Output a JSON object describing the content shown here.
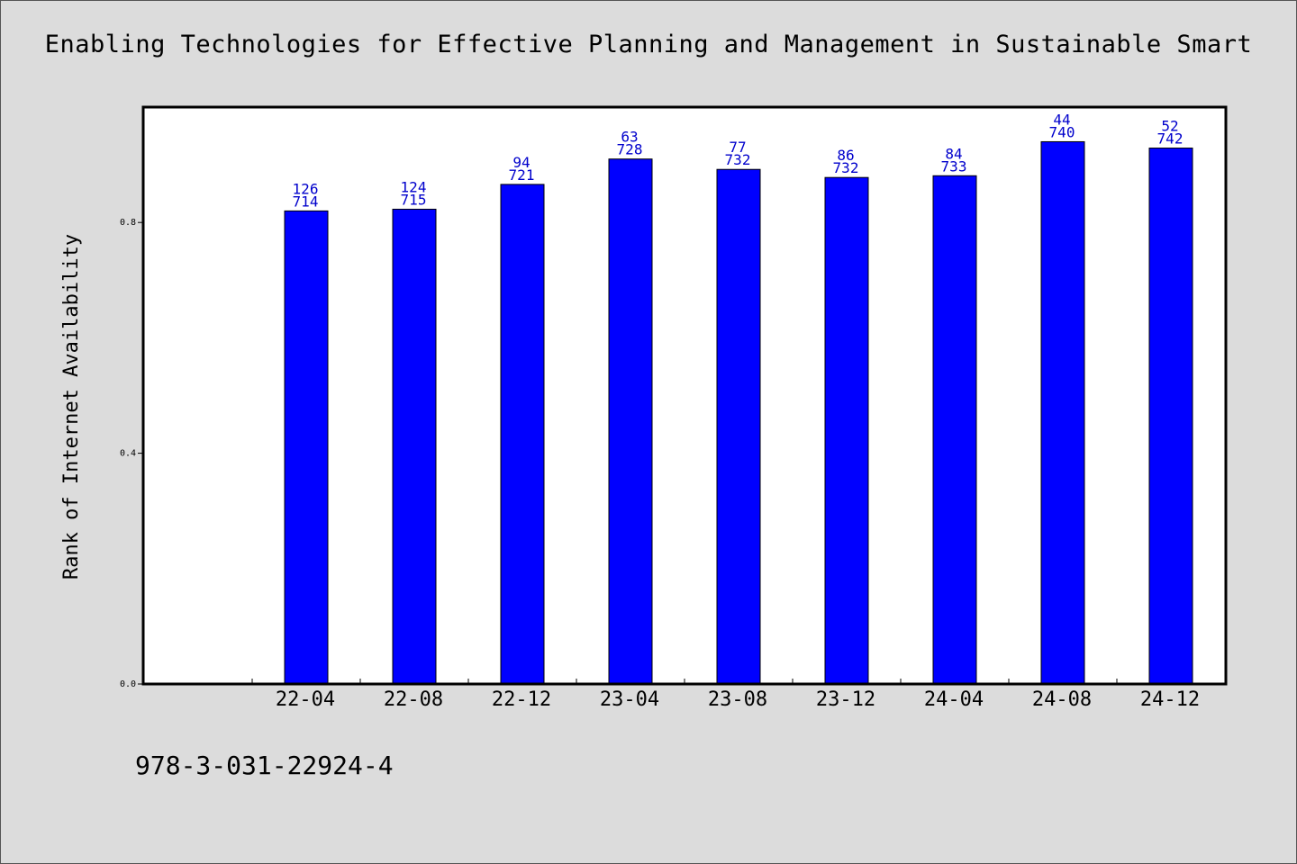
{
  "chart_data": {
    "type": "bar",
    "title": "Enabling Technologies for Effective Planning and Management in Sustainable Smart",
    "xlabel": "",
    "ylabel": "Rank of Internet Availability",
    "ylim": [
      0,
      1.0
    ],
    "yticks": [
      "0.0",
      "0.4",
      "0.8"
    ],
    "categories": [
      "22-04",
      "22-08",
      "22-12",
      "23-04",
      "23-08",
      "23-12",
      "24-04",
      "24-08",
      "24-12"
    ],
    "values": [
      0.82,
      0.823,
      0.866,
      0.91,
      0.892,
      0.878,
      0.881,
      0.94,
      0.929
    ],
    "bar_labels_top": [
      "126",
      "124",
      "94",
      "63",
      "77",
      "86",
      "84",
      "44",
      "52"
    ],
    "bar_labels_bottom": [
      "714",
      "715",
      "721",
      "728",
      "732",
      "732",
      "733",
      "740",
      "742"
    ],
    "bar_color": "#0000ff",
    "label_color": "#0000cc",
    "grid": false,
    "legend": "none"
  },
  "footer": {
    "isbn": "978-3-031-22924-4"
  }
}
